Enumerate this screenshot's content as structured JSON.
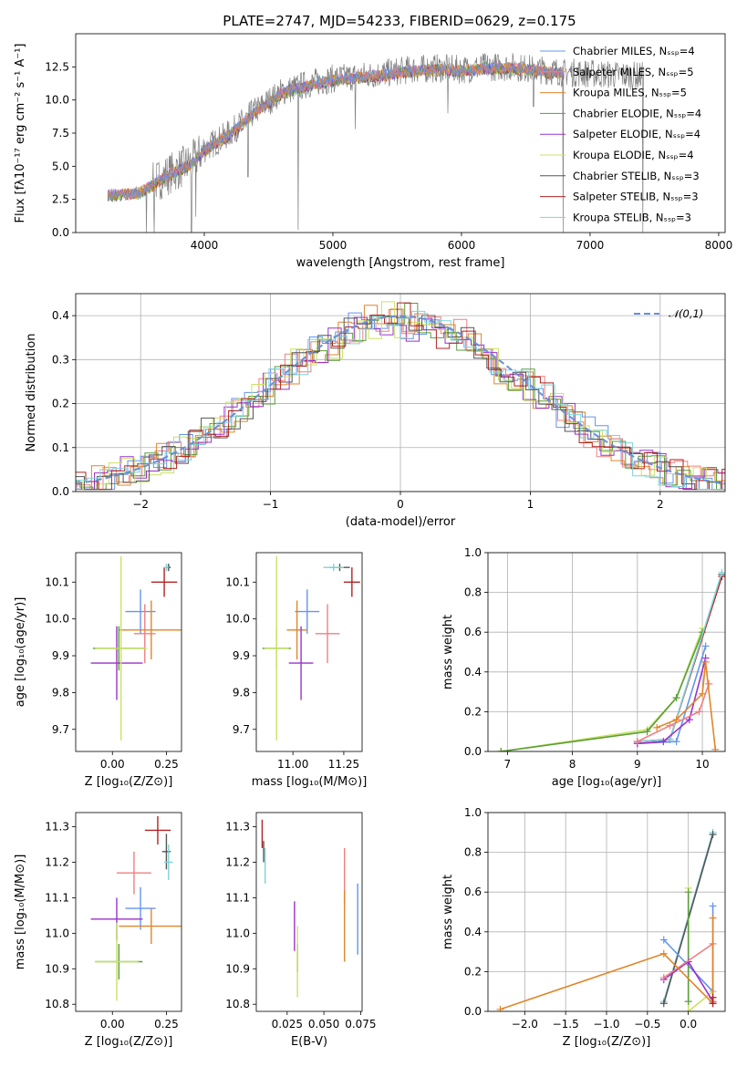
{
  "figure_title": "PLATE=2747, MJD=54233, FIBERID=0629, z=0.175",
  "chart_data": [
    {
      "id": "spectrum",
      "type": "line",
      "xlabel": "wavelength [Angstrom, rest frame]",
      "ylabel": "Flux [fλ10⁻¹⁷ erg cm⁻² s⁻¹ A⁻¹]",
      "xlim": [
        3000,
        8050
      ],
      "ylim": [
        0,
        15
      ],
      "xticks": [
        4000,
        5000,
        6000,
        7000,
        8000
      ],
      "yticks": [
        0.0,
        2.5,
        5.0,
        7.5,
        10.0,
        12.5
      ],
      "continuum": [
        [
          3250,
          2.9
        ],
        [
          3500,
          3.1
        ],
        [
          3700,
          4.3
        ],
        [
          3900,
          5.3
        ],
        [
          4000,
          6.3
        ],
        [
          4200,
          7.5
        ],
        [
          4400,
          9.2
        ],
        [
          4600,
          10.6
        ],
        [
          4800,
          11.2
        ],
        [
          5000,
          11.6
        ],
        [
          5200,
          11.8
        ],
        [
          5400,
          12.0
        ],
        [
          5600,
          12.3
        ],
        [
          5800,
          12.4
        ],
        [
          6000,
          12.3
        ],
        [
          6200,
          12.5
        ],
        [
          6400,
          12.5
        ],
        [
          6600,
          12.3
        ],
        [
          6800,
          12.1
        ],
        [
          7000,
          12.0
        ],
        [
          7200,
          11.9
        ],
        [
          7420,
          11.8
        ]
      ],
      "data_range": [
        3250,
        7420
      ],
      "model_range": [
        3250,
        6800
      ],
      "absorption_dips": [
        [
          3550,
          0.0
        ],
        [
          3610,
          0.0
        ],
        [
          3900,
          0.0
        ],
        [
          3935,
          1.2
        ],
        [
          4340,
          4.2
        ],
        [
          4730,
          0.2
        ],
        [
          5175,
          7.8
        ],
        [
          5895,
          9.0
        ],
        [
          6560,
          9.5
        ],
        [
          6790,
          0.0
        ],
        [
          7410,
          0.0
        ]
      ],
      "legend_position": "upper right",
      "legend": [
        {
          "label": "Chabrier MILES, Nₛₛₚ=4",
          "color": "#6495ED"
        },
        {
          "label": "Salpeter MILES, Nₛₛₚ=5",
          "color": "#F08080"
        },
        {
          "label": "Kroupa MILES, Nₛₛₚ=5",
          "color": "#E0862A"
        },
        {
          "label": "Chabrier ELODIE, Nₛₛₚ=4",
          "color": "#5A9E3A"
        },
        {
          "label": "Salpeter ELODIE, Nₛₛₚ=4",
          "color": "#9932CC"
        },
        {
          "label": "Kroupa ELODIE, Nₛₛₚ=4",
          "color": "#C9E265"
        },
        {
          "label": "Chabrier STELIB, Nₛₛₚ=3",
          "color": "#555555"
        },
        {
          "label": "Salpeter STELIB, Nₛₛₚ=3",
          "color": "#B22222"
        },
        {
          "label": "Kroupa STELIB, Nₛₛₚ=3",
          "color": "#7FD3D9"
        }
      ]
    },
    {
      "id": "residuals",
      "type": "histogram",
      "xlabel": "(data-model)/error",
      "ylabel": "Normed distribution",
      "xlim": [
        -2.5,
        2.5
      ],
      "ylim": [
        0,
        0.45
      ],
      "xticks": [
        -2,
        -1,
        0,
        1,
        2
      ],
      "yticks": [
        0.0,
        0.1,
        0.2,
        0.3,
        0.4
      ],
      "grid": true,
      "bin_width": 0.1,
      "histogram_spread": 0.035,
      "reference_curve": {
        "label": "𝒩(0,1)",
        "color": "#6A8FD6",
        "style": "dashed",
        "mean": 0,
        "sigma": 1
      }
    },
    {
      "id": "age_vs_Z",
      "type": "errorbar",
      "xlabel": "Z [log₁₀(Z/Z⊙)]",
      "ylabel": "age  [log₁₀(age/yr)]",
      "xlim": [
        -0.17,
        0.32
      ],
      "ylim": [
        9.64,
        10.18
      ],
      "xticks": [
        0.0,
        0.25
      ],
      "yticks": [
        9.7,
        9.8,
        9.9,
        10.0,
        10.1
      ],
      "points": [
        {
          "color": "#6495ED",
          "x": 0.13,
          "xerr": 0.07,
          "y": 10.02,
          "yerr": 0.06
        },
        {
          "color": "#F08080",
          "x": 0.15,
          "xerr": 0.05,
          "y": 9.96,
          "yerr": 0.08
        },
        {
          "color": "#E0862A",
          "x": 0.18,
          "xerr": 0.15,
          "y": 9.97,
          "yerr": 0.08
        },
        {
          "color": "#5A9E3A",
          "x": 0.03,
          "xerr": 0.12,
          "y": 9.92,
          "yerr": 0.06
        },
        {
          "color": "#9932CC",
          "x": 0.02,
          "xerr": 0.12,
          "y": 9.88,
          "yerr": 0.1
        },
        {
          "color": "#C9E265",
          "x": 0.04,
          "xerr": 0.12,
          "y": 9.92,
          "yerr": 0.25
        },
        {
          "color": "#555555",
          "x": 0.26,
          "xerr": 0.01,
          "y": 10.14,
          "yerr": 0.01
        },
        {
          "color": "#B22222",
          "x": 0.24,
          "xerr": 0.06,
          "y": 10.1,
          "yerr": 0.04
        },
        {
          "color": "#7FD3D9",
          "x": 0.25,
          "xerr": 0.01,
          "y": 10.14,
          "yerr": 0.01
        }
      ]
    },
    {
      "id": "age_vs_mass",
      "type": "errorbar",
      "xlabel": "mass [log₁₀(M/M⊙)]",
      "ylabel": "",
      "xlim": [
        10.82,
        11.34
      ],
      "ylim": [
        9.64,
        10.18
      ],
      "xticks": [
        11.0,
        11.25
      ],
      "yticks": [
        9.7,
        9.8,
        9.9,
        10.0,
        10.1
      ],
      "points": [
        {
          "color": "#6495ED",
          "x": 11.07,
          "xerr": 0.06,
          "y": 10.02,
          "yerr": 0.06
        },
        {
          "color": "#F08080",
          "x": 11.17,
          "xerr": 0.06,
          "y": 9.96,
          "yerr": 0.08
        },
        {
          "color": "#E0862A",
          "x": 11.02,
          "xerr": 0.05,
          "y": 9.97,
          "yerr": 0.08
        },
        {
          "color": "#5A9E3A",
          "x": 10.92,
          "xerr": 0.07,
          "y": 9.92,
          "yerr": 0.06
        },
        {
          "color": "#9932CC",
          "x": 11.04,
          "xerr": 0.06,
          "y": 9.88,
          "yerr": 0.1
        },
        {
          "color": "#C9E265",
          "x": 10.92,
          "xerr": 0.06,
          "y": 9.92,
          "yerr": 0.25
        },
        {
          "color": "#555555",
          "x": 11.23,
          "xerr": 0.05,
          "y": 10.14,
          "yerr": 0.01
        },
        {
          "color": "#B22222",
          "x": 11.29,
          "xerr": 0.04,
          "y": 10.1,
          "yerr": 0.04
        },
        {
          "color": "#7FD3D9",
          "x": 11.2,
          "xerr": 0.05,
          "y": 10.14,
          "yerr": 0.01
        }
      ]
    },
    {
      "id": "sfh_age",
      "type": "line",
      "xlabel": "age  [log₁₀(age/yr)]",
      "ylabel": "mass weight",
      "xlim": [
        6.7,
        10.35
      ],
      "ylim": [
        0,
        1
      ],
      "xticks": [
        7,
        8,
        9,
        10
      ],
      "yticks": [
        0.0,
        0.2,
        0.4,
        0.6,
        0.8,
        1.0
      ],
      "grid": true,
      "series": [
        {
          "color": "#C9E265",
          "x": [
            6.9,
            9.15,
            9.6,
            10.0
          ],
          "y": [
            0.0,
            0.11,
            0.27,
            0.62
          ]
        },
        {
          "color": "#5A9E3A",
          "x": [
            6.9,
            9.15,
            9.6,
            10.0
          ],
          "y": [
            0.0,
            0.1,
            0.27,
            0.6
          ]
        },
        {
          "color": "#555555",
          "x": [
            9.0,
            9.5,
            10.3
          ],
          "y": [
            0.05,
            0.06,
            0.89
          ]
        },
        {
          "color": "#B22222",
          "x": [
            9.0,
            9.5,
            10.3
          ],
          "y": [
            0.05,
            0.06,
            0.88
          ]
        },
        {
          "color": "#7FD3D9",
          "x": [
            9.0,
            9.5,
            10.3
          ],
          "y": [
            0.05,
            0.06,
            0.9
          ]
        },
        {
          "color": "#6495ED",
          "x": [
            9.0,
            9.6,
            10.05
          ],
          "y": [
            0.04,
            0.05,
            0.53
          ]
        },
        {
          "color": "#9932CC",
          "x": [
            9.0,
            9.4,
            9.8,
            10.05
          ],
          "y": [
            0.04,
            0.05,
            0.16,
            0.47
          ]
        },
        {
          "color": "#F08080",
          "x": [
            9.0,
            9.5,
            9.95,
            10.1
          ],
          "y": [
            0.05,
            0.13,
            0.2,
            0.34
          ]
        },
        {
          "color": "#E0862A",
          "x": [
            9.3,
            9.6,
            10.0,
            10.05,
            10.2
          ],
          "y": [
            0.12,
            0.16,
            0.29,
            0.45,
            0.01
          ]
        }
      ]
    },
    {
      "id": "mass_vs_Z",
      "type": "errorbar",
      "xlabel": "Z [log₁₀(Z/Z⊙)]",
      "ylabel": "mass [log₁₀(M/M⊙)]",
      "xlim": [
        -0.17,
        0.32
      ],
      "ylim": [
        10.78,
        11.34
      ],
      "xticks": [
        0.0,
        0.25
      ],
      "yticks": [
        10.8,
        10.9,
        11.0,
        11.1,
        11.2,
        11.3
      ],
      "points": [
        {
          "color": "#6495ED",
          "x": 0.13,
          "xerr": 0.07,
          "y": 11.07,
          "yerr": 0.06
        },
        {
          "color": "#F08080",
          "x": 0.1,
          "xerr": 0.08,
          "y": 11.17,
          "yerr": 0.06
        },
        {
          "color": "#E0862A",
          "x": 0.18,
          "xerr": 0.15,
          "y": 11.02,
          "yerr": 0.05
        },
        {
          "color": "#5A9E3A",
          "x": 0.03,
          "xerr": 0.11,
          "y": 10.92,
          "yerr": 0.05
        },
        {
          "color": "#9932CC",
          "x": 0.02,
          "xerr": 0.12,
          "y": 11.04,
          "yerr": 0.06
        },
        {
          "color": "#C9E265",
          "x": 0.02,
          "xerr": 0.1,
          "y": 10.92,
          "yerr": 0.11
        },
        {
          "color": "#555555",
          "x": 0.25,
          "xerr": 0.02,
          "y": 11.23,
          "yerr": 0.05
        },
        {
          "color": "#B22222",
          "x": 0.21,
          "xerr": 0.06,
          "y": 11.29,
          "yerr": 0.04
        },
        {
          "color": "#7FD3D9",
          "x": 0.26,
          "xerr": 0.02,
          "y": 11.2,
          "yerr": 0.05
        }
      ]
    },
    {
      "id": "mass_vs_ebv",
      "type": "errorbar",
      "xlabel": "E(B-V)",
      "ylabel": "",
      "xlim": [
        0.004,
        0.076
      ],
      "ylim": [
        10.78,
        11.34
      ],
      "xticks": [
        0.025,
        0.05,
        0.075
      ],
      "yticks": [
        10.8,
        10.9,
        11.0,
        11.1,
        11.2,
        11.3
      ],
      "points": [
        {
          "color": "#6495ED",
          "x": 0.073,
          "xerr": 0,
          "y": 11.04,
          "yerr": 0.1
        },
        {
          "color": "#F08080",
          "x": 0.064,
          "xerr": 0,
          "y": 11.16,
          "yerr": 0.08
        },
        {
          "color": "#E0862A",
          "x": 0.064,
          "xerr": 0,
          "y": 11.02,
          "yerr": 0.1
        },
        {
          "color": "#5A9E3A",
          "x": 0.032,
          "xerr": 0,
          "y": 10.93,
          "yerr": 0.04
        },
        {
          "color": "#9932CC",
          "x": 0.03,
          "xerr": 0,
          "y": 11.02,
          "yerr": 0.07
        },
        {
          "color": "#C9E265",
          "x": 0.032,
          "xerr": 0,
          "y": 10.92,
          "yerr": 0.1
        },
        {
          "color": "#555555",
          "x": 0.009,
          "xerr": 0,
          "y": 11.23,
          "yerr": 0.03
        },
        {
          "color": "#B22222",
          "x": 0.008,
          "xerr": 0,
          "y": 11.28,
          "yerr": 0.04
        },
        {
          "color": "#7FD3D9",
          "x": 0.01,
          "xerr": 0,
          "y": 11.19,
          "yerr": 0.05
        }
      ]
    },
    {
      "id": "sfh_Z",
      "type": "line",
      "xlabel": "Z [log₁₀(Z/Z⊙)]",
      "ylabel": "mass weight",
      "xlim": [
        -2.45,
        0.45
      ],
      "ylim": [
        0,
        1
      ],
      "xticks": [
        -2.0,
        -1.5,
        -1.0,
        -0.5,
        0.0
      ],
      "yticks": [
        0.0,
        0.2,
        0.4,
        0.6,
        0.8,
        1.0
      ],
      "grid": true,
      "series": [
        {
          "color": "#7FD3D9",
          "x": [
            -0.3,
            0.3
          ],
          "y": [
            0.05,
            0.9
          ]
        },
        {
          "color": "#555555",
          "x": [
            -0.3,
            0.3
          ],
          "y": [
            0.04,
            0.89
          ]
        },
        {
          "color": "#6495ED",
          "x": [
            -0.3,
            0.3,
            0.3
          ],
          "y": [
            0.36,
            0.1,
            0.53
          ]
        },
        {
          "color": "#C9E265",
          "x": [
            0.0,
            0.0,
            0.3
          ],
          "y": [
            0.62,
            0.0,
            0.1
          ]
        },
        {
          "color": "#5A9E3A",
          "x": [
            0.0,
            0.0
          ],
          "y": [
            0.6,
            0.05
          ]
        },
        {
          "color": "#9932CC",
          "x": [
            -0.3,
            0.0,
            0.3
          ],
          "y": [
            0.16,
            0.25,
            0.05
          ]
        },
        {
          "color": "#F08080",
          "x": [
            -0.3,
            0.3,
            0.3
          ],
          "y": [
            0.17,
            0.34,
            0.05
          ]
        },
        {
          "color": "#E0862A",
          "x": [
            -2.3,
            -0.3,
            0.3,
            0.3
          ],
          "y": [
            0.01,
            0.29,
            0.04,
            0.47
          ]
        },
        {
          "color": "#B22222",
          "x": [
            0.3,
            0.3
          ],
          "y": [
            0.04,
            0.07
          ]
        }
      ]
    }
  ]
}
